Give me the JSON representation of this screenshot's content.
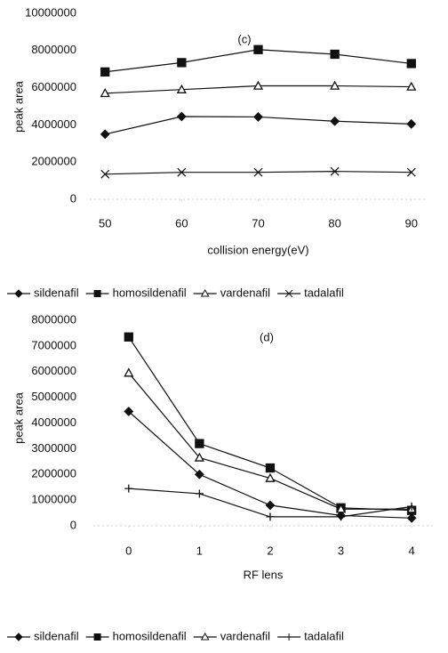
{
  "chart_data": [
    {
      "type": "line",
      "annotation": "(c)",
      "y_label": "peak area",
      "x_label": "collision energy(eV)",
      "x": [
        50,
        60,
        70,
        80,
        90
      ],
      "xlim": [
        48,
        92
      ],
      "xticks": [
        50,
        60,
        70,
        80,
        90
      ],
      "ylim": [
        0,
        10000000
      ],
      "yticks": [
        0,
        2000000,
        4000000,
        6000000,
        8000000,
        10000000
      ],
      "legend": "bottom",
      "series": [
        {
          "name": "sildenafil",
          "color": "#111111",
          "marker": "diamond",
          "values": [
            3500000,
            4450000,
            4430000,
            4200000,
            4050000
          ]
        },
        {
          "name": "homosildenafil",
          "color": "#111111",
          "marker": "square",
          "values": [
            6850000,
            7350000,
            8050000,
            7800000,
            7300000
          ]
        },
        {
          "name": "vardenafil",
          "color": "#111111",
          "marker": "triangle",
          "values": [
            5700000,
            5900000,
            6100000,
            6100000,
            6050000
          ]
        },
        {
          "name": "tadalafil",
          "color": "#111111",
          "marker": "x",
          "values": [
            1350000,
            1450000,
            1450000,
            1500000,
            1450000
          ]
        }
      ]
    },
    {
      "type": "line",
      "annotation": "(d)",
      "y_label": "peak area",
      "x_label": "RF lens",
      "x": [
        0,
        1,
        2,
        3,
        4
      ],
      "xlim": [
        -0.5,
        4.3
      ],
      "xticks": [
        0,
        1,
        2,
        3,
        4
      ],
      "ylim": [
        0,
        8000000
      ],
      "yticks": [
        0,
        1000000,
        2000000,
        3000000,
        4000000,
        5000000,
        6000000,
        7000000,
        8000000
      ],
      "legend": "bottom",
      "series": [
        {
          "name": "sildenafil",
          "color": "#111111",
          "marker": "diamond",
          "values": [
            4450000,
            2000000,
            800000,
            400000,
            300000
          ]
        },
        {
          "name": "homosildenafil",
          "color": "#111111",
          "marker": "square",
          "values": [
            7350000,
            3200000,
            2250000,
            700000,
            600000
          ]
        },
        {
          "name": "vardenafil",
          "color": "#111111",
          "marker": "triangle",
          "values": [
            5950000,
            2650000,
            1850000,
            650000,
            650000
          ]
        },
        {
          "name": "tadalafil",
          "color": "#111111",
          "marker": "plus",
          "values": [
            1450000,
            1250000,
            350000,
            350000,
            750000
          ]
        }
      ]
    }
  ]
}
